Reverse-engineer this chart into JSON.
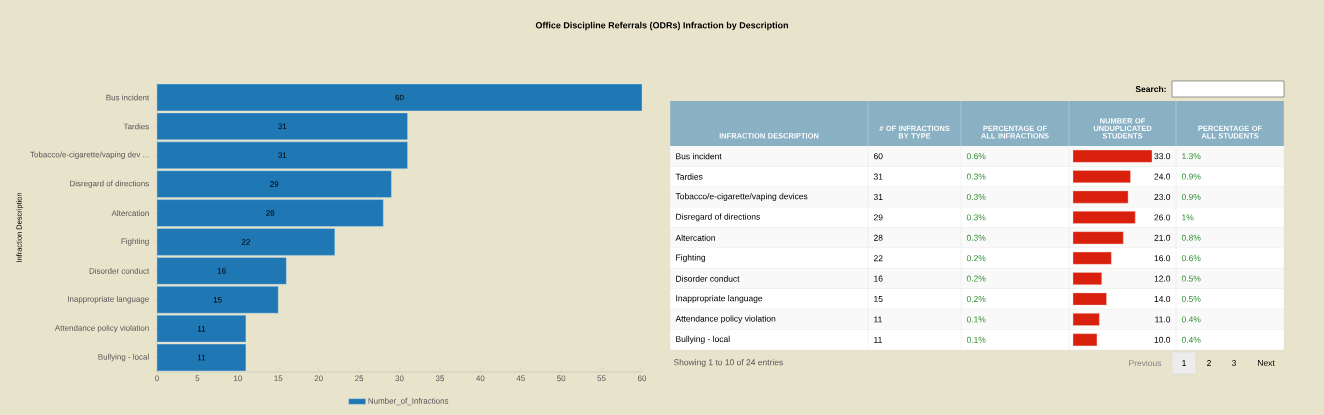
{
  "chart_data": [
    {
      "type": "bar",
      "title": "Office Discipline Referrals (ODRs) Infraction by Description",
      "ylabel": "Infraction Description",
      "orientation": "horizontal",
      "categories": [
        "Bus incident",
        "Tardies",
        "Tobacco/e-cigarette/vaping dev ...",
        "Disregard of directions",
        "Altercation",
        "Fighting",
        "Disorder conduct",
        "Inappropriate language",
        "Attendance policy violation",
        "Bullying - local"
      ],
      "series": [
        {
          "name": "Number_of_Infractions",
          "color": "#1f77b4",
          "values": [
            60,
            31,
            31,
            29,
            28,
            22,
            16,
            15,
            11,
            11
          ]
        }
      ],
      "xlim": [
        0,
        60
      ],
      "xticks": [
        0,
        5,
        10,
        15,
        20,
        25,
        30,
        35,
        40,
        45,
        50,
        55,
        60
      ],
      "data_labels": true,
      "legend": "bottom"
    },
    {
      "type": "bar",
      "orientation": "horizontal",
      "xlabel": "NUMBER OF UNDUPLICATED STUDENTS",
      "tick_labels": "y",
      "categories": [
        "Bus incident",
        "Tardies",
        "Tobacco/e-cigarette/vaping devices",
        "Disregard of directions",
        "Altercation",
        "Fighting",
        "Disorder conduct",
        "Inappropriate language",
        "Attendance policy violation",
        "Bullying - local"
      ],
      "values": [
        33,
        24,
        23,
        26,
        21,
        16,
        12,
        14,
        11,
        10
      ],
      "value_labels": [
        "33.0",
        "24.0",
        "23.0",
        "26.0",
        "21.0",
        "16.0",
        "12.0",
        "14.0",
        "11.0",
        "10.0"
      ],
      "color": "#d8200c",
      "xlim": [
        0,
        33
      ],
      "annotations": [
        "INFRACTION DESCRIPTION",
        "# OF INFRACTIONS BY TYPE",
        "PERCENTAGE OF ALL INFRACTIONS",
        "PERCENTAGE OF ALL STUDENTS",
        "60",
        "0.6%",
        "1.3%",
        "31",
        "0.3%",
        "0.9%",
        "31",
        "0.3%",
        "0.9%",
        "29",
        "0.3%",
        "1%",
        "28",
        "0.3%",
        "0.8%",
        "22",
        "0.2%",
        "0.6%",
        "16",
        "0.2%",
        "0.5%",
        "15",
        "0.2%",
        "0.5%",
        "11",
        "0.1%",
        "0.4%",
        "11",
        "0.1%",
        "0.4%",
        "Search:",
        "Showing 1 to 10 of 24 entries",
        "Previous",
        "1",
        "2",
        "3",
        "Next"
      ]
    }
  ]
}
